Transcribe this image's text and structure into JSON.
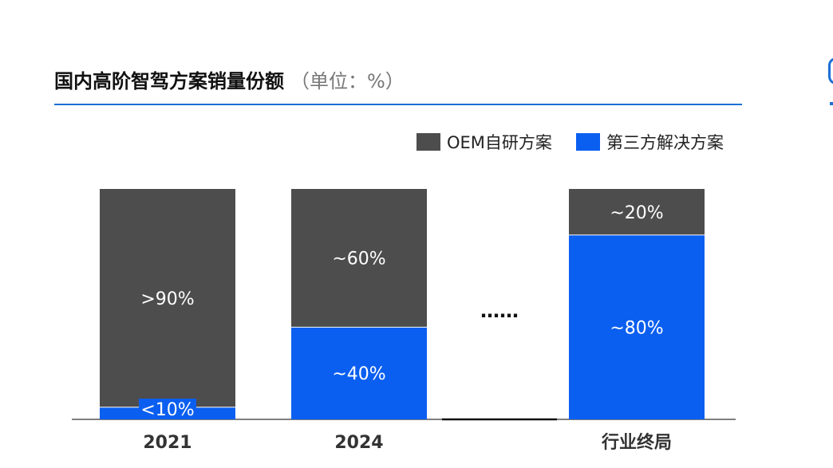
{
  "chart_data": {
    "type": "bar",
    "stacked": true,
    "normalized": true,
    "title": "国内高阶智驾方案销量份额",
    "unit_note": "（单位：%）",
    "categories": [
      "2021",
      "2024",
      "行业终局"
    ],
    "gap_marker": "……",
    "series": [
      {
        "name": "OEM自研方案",
        "color": "#4d4d4d",
        "values": [
          90,
          60,
          20
        ],
        "labels": [
          ">90%",
          "~60%",
          "~20%"
        ]
      },
      {
        "name": "第三方解决方案",
        "color": "#0a5ff0",
        "values": [
          5,
          40,
          80
        ],
        "labels": [
          "<10%",
          "~40%",
          "~80%"
        ]
      }
    ],
    "ylim": [
      0,
      100
    ],
    "grid": false,
    "legend_position": "top-right"
  }
}
